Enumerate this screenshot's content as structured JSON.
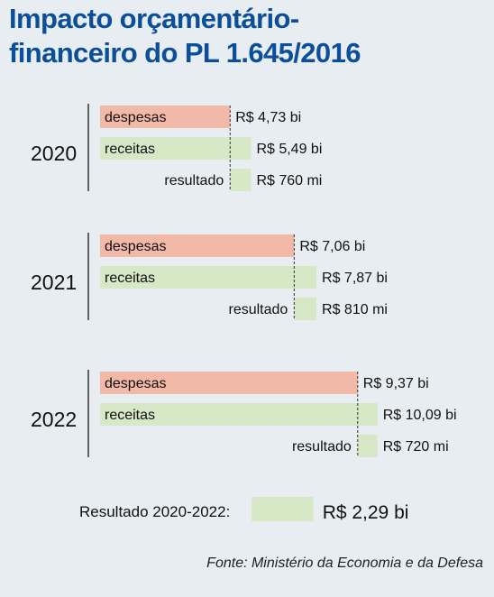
{
  "title": {
    "line1": "Impacto orçamentário-",
    "line2": "financeiro do PL 1.645/2016"
  },
  "colors": {
    "title": "#0b4f9a",
    "despesas": "#f2b8a8",
    "receitas": "#d6e8c5",
    "background": "#e8edf1"
  },
  "chart_data": {
    "type": "bar",
    "unit": "R$",
    "groups": [
      {
        "year": "2020",
        "bars": [
          {
            "label": "despesas",
            "value": 4.73,
            "text": "R$ 4,73 bi"
          },
          {
            "label": "receitas",
            "value": 5.49,
            "text": "R$ 5,49 bi"
          },
          {
            "label": "resultado",
            "value": 0.76,
            "text": "R$ 760 mi"
          }
        ]
      },
      {
        "year": "2021",
        "bars": [
          {
            "label": "despesas",
            "value": 7.06,
            "text": "R$ 7,06 bi"
          },
          {
            "label": "receitas",
            "value": 7.87,
            "text": "R$ 7,87 bi"
          },
          {
            "label": "resultado",
            "value": 0.81,
            "text": "R$ 810 mi"
          }
        ]
      },
      {
        "year": "2022",
        "bars": [
          {
            "label": "despesas",
            "value": 9.37,
            "text": "R$ 9,37 bi"
          },
          {
            "label": "receitas",
            "value": 10.09,
            "text": "R$ 10,09 bi"
          },
          {
            "label": "resultado",
            "value": 0.72,
            "text": "R$ 720 mi"
          }
        ]
      }
    ],
    "total": {
      "label": "Resultado 2020-2022:",
      "value": 2.29,
      "text": "R$ 2,29 bi"
    }
  },
  "source": "Fonte: Ministério da Economia e da Defesa"
}
